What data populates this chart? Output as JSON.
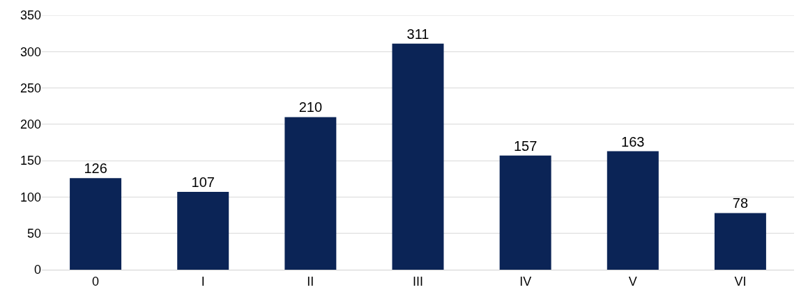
{
  "chart_data": {
    "type": "bar",
    "categories": [
      "0",
      "I",
      "II",
      "III",
      "IV",
      "V",
      "VI"
    ],
    "values": [
      126,
      107,
      210,
      311,
      157,
      163,
      78
    ],
    "color": "#0b2456",
    "ylim": [
      0,
      350
    ],
    "yticks": [
      0,
      50,
      100,
      150,
      200,
      250,
      300,
      350
    ],
    "grid": "y",
    "data_labels": true,
    "legend": false
  }
}
